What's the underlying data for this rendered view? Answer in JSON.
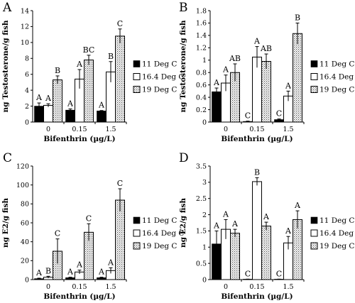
{
  "chart_data": [
    {
      "type": "bar",
      "panel_label": "A",
      "categories": [
        "0",
        "0.15",
        "1.5"
      ],
      "xlabel": "Bifenthrin (µg/L)",
      "ylabel": "ng Testosterone/g fish",
      "ylim": [
        0,
        14
      ],
      "yticks": [
        "0",
        "2",
        "4",
        "6",
        "8",
        "10",
        "12",
        "14"
      ],
      "series": [
        {
          "name": "11 Deg C",
          "values": [
            2.0,
            1.5,
            1.4
          ],
          "errors": [
            0.4,
            0.15,
            0.05
          ],
          "letters": [
            "A",
            "A",
            "A"
          ],
          "fill": "#000000"
        },
        {
          "name": "16.4 Deg C",
          "values": [
            2.1,
            5.4,
            6.3
          ],
          "errors": [
            0.2,
            1.2,
            1.3
          ],
          "letters": [
            "A",
            "A",
            "B"
          ],
          "fill": "#ffffff"
        },
        {
          "name": "19 Deg C",
          "values": [
            5.3,
            7.8,
            10.8
          ],
          "errors": [
            0.5,
            0.6,
            0.9
          ],
          "letters": [
            "B",
            "BC",
            "C"
          ],
          "fill": "dotted"
        }
      ]
    },
    {
      "type": "bar",
      "panel_label": "B",
      "categories": [
        "0",
        "0.15",
        "1.5"
      ],
      "xlabel": "Bifenthrin (µg/L)",
      "ylabel": "ng Testosterone/g fish",
      "ylim": [
        0,
        1.8
      ],
      "yticks": [
        "0",
        "0.2",
        "0.4",
        "0.6",
        "0.8",
        "1",
        "1.2",
        "1.4",
        "1.6",
        "1.8"
      ],
      "series": [
        {
          "name": "11 Deg C",
          "values": [
            0.49,
            0.01,
            0.04
          ],
          "errors": [
            0.06,
            0.005,
            0.01
          ],
          "letters": [
            "A",
            "C",
            "C"
          ],
          "fill": "#000000"
        },
        {
          "name": "16.4 Deg C",
          "values": [
            0.63,
            1.05,
            0.42
          ],
          "errors": [
            0.13,
            0.17,
            0.08
          ],
          "letters": [
            "A",
            "A",
            "A"
          ],
          "fill": "#ffffff"
        },
        {
          "name": "19 Deg C",
          "values": [
            0.8,
            0.98,
            1.43
          ],
          "errors": [
            0.14,
            0.12,
            0.17
          ],
          "letters": [
            "AB",
            "AB",
            "B"
          ],
          "fill": "dotted"
        }
      ]
    },
    {
      "type": "bar",
      "panel_label": "C",
      "categories": [
        "0",
        "0.15",
        "1.5"
      ],
      "xlabel": "Bifenthrin (µg/L)",
      "ylabel": "ng E2/g fish",
      "ylim": [
        0,
        120
      ],
      "yticks": [
        "0",
        "20",
        "40",
        "60",
        "80",
        "100",
        "120"
      ],
      "series": [
        {
          "name": "11 Deg C",
          "values": [
            1.0,
            2.0,
            2.0
          ],
          "errors": [
            0.5,
            0.5,
            0.5
          ],
          "letters": [
            "A",
            "A",
            "A"
          ],
          "fill": "#000000"
        },
        {
          "name": "16.4 Deg C",
          "values": [
            2.5,
            8.0,
            9.5
          ],
          "errors": [
            1.0,
            2.0,
            3.0
          ],
          "letters": [
            "B",
            "A",
            "A"
          ],
          "fill": "#ffffff"
        },
        {
          "name": "19 Deg C",
          "values": [
            30.0,
            50.0,
            84.0
          ],
          "errors": [
            13.0,
            9.0,
            12.0
          ],
          "letters": [
            "C",
            "C",
            "C"
          ],
          "fill": "dotted"
        }
      ]
    },
    {
      "type": "bar",
      "panel_label": "D",
      "categories": [
        "0",
        "0.15",
        "1.5"
      ],
      "xlabel": "Bifenthrin (µg/L)",
      "ylabel": "ng E2/g fish",
      "ylim": [
        0,
        3.5
      ],
      "yticks": [
        "0",
        "0.5",
        "1",
        "1.5",
        "2",
        "2.5",
        "3",
        "3.5"
      ],
      "series": [
        {
          "name": "11 Deg C",
          "values": [
            1.1,
            0.01,
            0.01
          ],
          "errors": [
            0.4,
            0.005,
            0.005
          ],
          "letters": [
            "A",
            "C",
            "C"
          ],
          "fill": "#000000"
        },
        {
          "name": "16.4 Deg C",
          "values": [
            1.55,
            3.02,
            1.13
          ],
          "errors": [
            0.3,
            0.12,
            0.2
          ],
          "letters": [
            "A",
            "B",
            "A"
          ],
          "fill": "#ffffff"
        },
        {
          "name": "19 Deg C",
          "values": [
            1.43,
            1.65,
            1.85
          ],
          "errors": [
            0.12,
            0.12,
            0.27
          ],
          "letters": [
            "A",
            "A",
            "A"
          ],
          "fill": "dotted"
        }
      ]
    }
  ]
}
